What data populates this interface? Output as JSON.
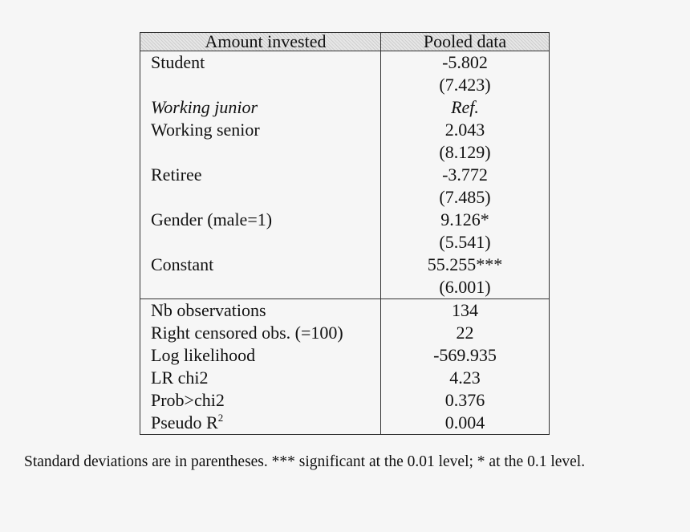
{
  "table": {
    "header": {
      "label": "Amount invested",
      "value": "Pooled data"
    },
    "coef_rows": [
      {
        "label": "Student",
        "value": "-5.802",
        "italic": false
      },
      {
        "label": "",
        "value": "(7.423)",
        "italic": false
      },
      {
        "label": "Working junior",
        "value": "Ref.",
        "italic": true
      },
      {
        "label": "Working senior",
        "value": "2.043",
        "italic": false
      },
      {
        "label": "",
        "value": "(8.129)",
        "italic": false
      },
      {
        "label": "Retiree",
        "value": "-3.772",
        "italic": false
      },
      {
        "label": "",
        "value": "(7.485)",
        "italic": false
      },
      {
        "label": "Gender (male=1)",
        "value": "9.126*",
        "italic": false
      },
      {
        "label": "",
        "value": "(5.541)",
        "italic": false
      },
      {
        "label": "Constant",
        "value": "55.255***",
        "italic": false
      },
      {
        "label": "",
        "value": "(6.001)",
        "italic": false
      }
    ],
    "stat_rows": [
      {
        "label": "Nb observations",
        "value": "134"
      },
      {
        "label": "Right censored obs. (=100)",
        "value": "22"
      },
      {
        "label": "Log likelihood",
        "value": "-569.935"
      },
      {
        "label": "LR chi2",
        "value": "4.23"
      },
      {
        "label": "Prob>chi2",
        "value": "0.376"
      },
      {
        "label": "Pseudo R",
        "sup": "2",
        "value": "0.004"
      }
    ]
  },
  "footnote": "Standard deviations are in parentheses.  *** significant at the 0.01 level; * at the 0.1 level."
}
